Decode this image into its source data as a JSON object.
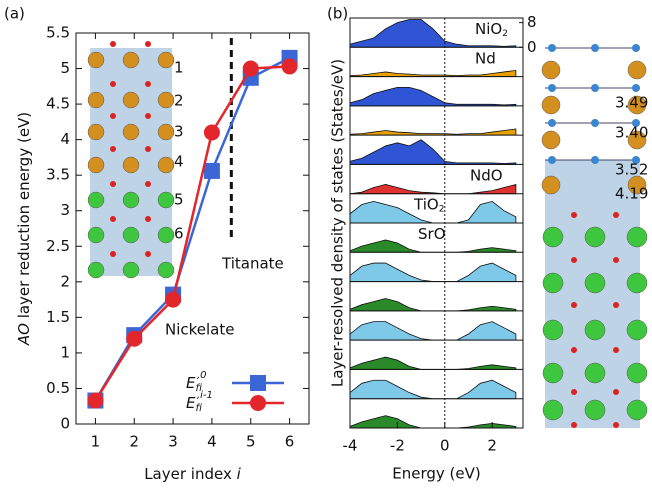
{
  "panel_labels": [
    "(a)",
    "(b)"
  ],
  "chart_data": [
    {
      "type": "line",
      "xlabel": "Layer index ",
      "xlabel_italic": "i",
      "ylabel_italic": "AO",
      "ylabel": " layer reduction energy (eV)",
      "x": [
        1,
        2,
        3,
        4,
        5,
        6
      ],
      "xlim": [
        0.5,
        6.5
      ],
      "xticks": [
        1,
        2,
        3,
        4,
        5,
        6
      ],
      "ylim": [
        0,
        5.5
      ],
      "yticks": [
        0,
        0.5,
        1,
        1.5,
        2,
        2.5,
        3,
        3.5,
        4,
        4.5,
        5,
        5.5
      ],
      "vlines": [
        4.5
      ],
      "annotations": [
        "Nickelate",
        "Titanate"
      ],
      "layer_labels": [
        "1",
        "2",
        "3",
        "4",
        "5",
        "6"
      ],
      "series": [
        {
          "name": "E",
          "name_sub": "f",
          "name_sup": "i,0",
          "color": "#3b66d6",
          "marker": "square",
          "values": [
            0.33,
            1.25,
            1.82,
            3.56,
            4.87,
            5.15
          ]
        },
        {
          "name": "E",
          "name_sub": "f",
          "name_sup": "i,i-1",
          "color": "#e3262b",
          "marker": "circle",
          "values": [
            0.33,
            1.2,
            1.75,
            4.1,
            5.0,
            5.03
          ]
        }
      ]
    },
    {
      "type": "area",
      "xlabel": "Energy (eV)",
      "ylabel": "Layer-resolved density of states (States/eV)",
      "x": [
        -4,
        -3.5,
        -3,
        -2.5,
        -2,
        -1.5,
        -1,
        -0.5,
        0,
        0.5,
        1,
        1.5,
        2,
        2.5,
        3
      ],
      "xlim": [
        -4,
        3.3
      ],
      "xticks": [
        -4,
        -2,
        0,
        2
      ],
      "ylim": [
        0,
        9.5
      ],
      "yticks": [
        0,
        8
      ],
      "vlines": [
        0
      ],
      "bond_labels": [
        "3.49",
        "3.40",
        "3.52",
        "4.19"
      ],
      "panels": [
        {
          "label": "NiO",
          "label_sub": "2",
          "color": "#2f55d4",
          "values": [
            1,
            2,
            3,
            6,
            8,
            9,
            9,
            6,
            2,
            1,
            0.5,
            0.5,
            0.5,
            0.3,
            0.5
          ]
        },
        {
          "label": "Nd",
          "color": "#e8a000",
          "values": [
            0.3,
            0.5,
            1,
            1.5,
            1,
            0.8,
            0.5,
            0.5,
            0.5,
            0.3,
            0.5,
            0.5,
            1,
            1.5,
            2
          ]
        },
        {
          "color": "#2f55d4",
          "values": [
            1,
            2,
            4,
            5,
            6,
            6,
            5,
            3,
            1,
            0.5,
            0.5,
            0.5,
            0.5,
            0.3,
            0.5
          ]
        },
        {
          "color": "#e8a000",
          "values": [
            0.3,
            0.5,
            1,
            1.5,
            1,
            0.8,
            0.5,
            0.5,
            0.5,
            0.3,
            0.5,
            0.5,
            1,
            1.5,
            2
          ]
        },
        {
          "color": "#2f55d4",
          "values": [
            1,
            2,
            4,
            6,
            7,
            6,
            8,
            5,
            1,
            0.5,
            0.5,
            0.5,
            0.5,
            0.3,
            0.5
          ]
        },
        {
          "label": "NdO",
          "color": "#e03030",
          "values": [
            0,
            0.5,
            2,
            3,
            2,
            1,
            0.5,
            0.3,
            0,
            0,
            0,
            0.5,
            1,
            2,
            3
          ]
        },
        {
          "label": "TiO",
          "label_sub": "2",
          "color": "#7ec8e8",
          "values": [
            3,
            6,
            7,
            6,
            5,
            3,
            1,
            0,
            0,
            0,
            1,
            6,
            7,
            4,
            2
          ]
        },
        {
          "label": "SrO",
          "color": "#2a8a2a",
          "values": [
            0.5,
            2,
            3,
            4,
            3,
            1,
            0,
            0,
            0,
            0,
            0.3,
            1,
            1.5,
            1,
            0.5
          ]
        },
        {
          "color": "#7ec8e8",
          "values": [
            2,
            5,
            6,
            6,
            4,
            2,
            0.5,
            0,
            0,
            0,
            2,
            5,
            6,
            4,
            2
          ]
        },
        {
          "color": "#2a8a2a",
          "values": [
            0.5,
            2,
            3,
            4,
            3,
            1,
            0,
            0,
            0,
            0,
            0.3,
            1,
            1.5,
            1,
            0.5
          ]
        },
        {
          "color": "#7ec8e8",
          "values": [
            2,
            5,
            6,
            6,
            4,
            2,
            0.5,
            0,
            0,
            0,
            2,
            5,
            6,
            4,
            2
          ]
        },
        {
          "color": "#2a8a2a",
          "values": [
            0.5,
            2,
            3,
            4,
            3,
            1,
            0,
            0,
            0,
            0,
            0.3,
            1,
            1.5,
            1,
            0.5
          ]
        },
        {
          "color": "#7ec8e8",
          "values": [
            2,
            5,
            6,
            6,
            4,
            2,
            0.5,
            0,
            0,
            0,
            2,
            5,
            6,
            4,
            2
          ]
        },
        {
          "color": "#2a8a2a",
          "values": [
            0.5,
            2,
            3,
            4,
            3,
            1,
            0,
            0,
            0,
            0,
            0.3,
            1,
            1.5,
            1,
            0.5
          ]
        }
      ]
    }
  ]
}
